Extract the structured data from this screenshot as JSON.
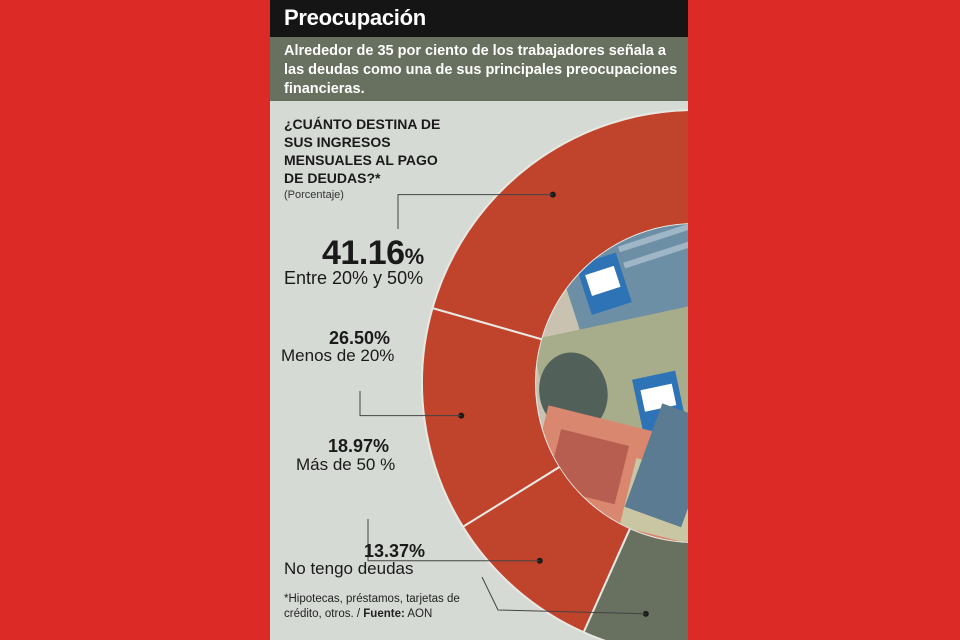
{
  "header": {
    "title": "Preocupación",
    "subtitle": "Alrededor de 35 por ciento de los trabajadores señala a las deudas como una de sus principales preocupaciones financieras."
  },
  "colors": {
    "background": "#dc2b26",
    "accent": "#c0432c",
    "no_debt": "#68705f",
    "header": "#151515"
  },
  "chart_data": {
    "type": "pie",
    "title": "¿CUÁNTO DESTINA DE SUS INGRESOS MENSUALES AL PAGO DE DEUDAS?*",
    "unit": "(Porcentaje)",
    "slices": [
      {
        "label": "Entre 20% y 50%",
        "value": 41.16,
        "display": "41.16",
        "color": "#c0432c"
      },
      {
        "label": "Menos de 20%",
        "value": 26.5,
        "display": "26.50%",
        "color": "#c0432c"
      },
      {
        "label": "Más de 50 %",
        "value": 18.97,
        "display": "18.97%",
        "color": "#c0432c"
      },
      {
        "label": "No tengo deudas",
        "value": 13.37,
        "display": "13.37%",
        "color": "#68705f"
      }
    ],
    "value_suffix_big": "%"
  },
  "footer": {
    "note": "*Hipotecas, préstamos, tarjetas de crédito, otros. / ",
    "source_label": "Fuente:",
    "source": " AON"
  }
}
